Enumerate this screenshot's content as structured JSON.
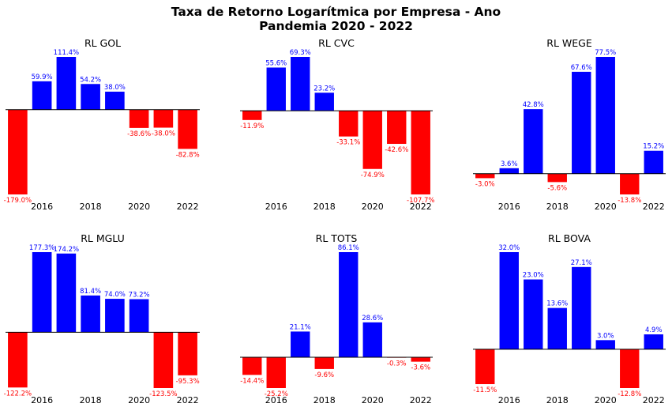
{
  "figure": {
    "title_line1": "Taxa de Retorno Logarítmica por Empresa - Ano",
    "title_line2": "Pandemia 2020 - 2022"
  },
  "colors": {
    "positive": "#0000ff",
    "negative": "#ff0000",
    "axis": "#000000"
  },
  "chart_data": [
    {
      "type": "bar",
      "title": "RL GOL",
      "categories": [
        2015,
        2016,
        2017,
        2018,
        2019,
        2020,
        2021,
        2022
      ],
      "tick_labels": [
        "2016",
        "2018",
        "2020",
        "2022"
      ],
      "values": [
        -179.0,
        59.9,
        111.4,
        54.2,
        38.0,
        -38.6,
        -38.0,
        -82.8
      ],
      "labels": [
        "-179.0%",
        "59.9%",
        "111.4%",
        "54.2%",
        "38.0%",
        "-38.6%",
        "-38.0%",
        "-82.8%"
      ]
    },
    {
      "type": "bar",
      "title": "RL CVC",
      "categories": [
        2015,
        2016,
        2017,
        2018,
        2019,
        2020,
        2021,
        2022
      ],
      "tick_labels": [
        "2016",
        "2018",
        "2020",
        "2022"
      ],
      "values": [
        -11.9,
        55.6,
        69.3,
        23.2,
        -33.1,
        -74.9,
        -42.6,
        -107.7
      ],
      "labels": [
        "-11.9%",
        "55.6%",
        "69.3%",
        "23.2%",
        "-33.1%",
        "-74.9%",
        "-42.6%",
        "-107.7%"
      ]
    },
    {
      "type": "bar",
      "title": "RL WEGE",
      "categories": [
        2015,
        2016,
        2017,
        2018,
        2019,
        2020,
        2021,
        2022
      ],
      "tick_labels": [
        "2016",
        "2018",
        "2020",
        "2022"
      ],
      "values": [
        -3.0,
        3.6,
        42.8,
        -5.6,
        67.6,
        77.5,
        -13.8,
        15.2
      ],
      "labels": [
        "-3.0%",
        "3.6%",
        "42.8%",
        "-5.6%",
        "67.6%",
        "77.5%",
        "-13.8%",
        "15.2%"
      ]
    },
    {
      "type": "bar",
      "title": "RL MGLU",
      "categories": [
        2015,
        2016,
        2017,
        2018,
        2019,
        2020,
        2021,
        2022
      ],
      "tick_labels": [
        "2016",
        "2018",
        "2020",
        "2022"
      ],
      "values": [
        -122.2,
        177.3,
        174.2,
        81.4,
        74.0,
        73.2,
        -123.5,
        -95.3
      ],
      "labels": [
        "-122.2%",
        "177.3%",
        "174.2%",
        "81.4%",
        "74.0%",
        "73.2%",
        "-123.5%",
        "-95.3%"
      ]
    },
    {
      "type": "bar",
      "title": "RL TOTS",
      "categories": [
        2015,
        2016,
        2017,
        2018,
        2019,
        2020,
        2021,
        2022
      ],
      "tick_labels": [
        "2016",
        "2018",
        "2020",
        "2022"
      ],
      "values": [
        -14.4,
        -25.2,
        21.1,
        -9.6,
        86.1,
        28.6,
        -0.3,
        -3.6
      ],
      "labels": [
        "-14.4%",
        "-25.2%",
        "21.1%",
        "-9.6%",
        "86.1%",
        "28.6%",
        "-0.3%",
        "-3.6%"
      ]
    },
    {
      "type": "bar",
      "title": "RL BOVA",
      "categories": [
        2015,
        2016,
        2017,
        2018,
        2019,
        2020,
        2021,
        2022
      ],
      "tick_labels": [
        "2016",
        "2018",
        "2020",
        "2022"
      ],
      "values": [
        -11.5,
        32.0,
        23.0,
        13.6,
        27.1,
        3.0,
        -12.8,
        4.9
      ],
      "labels": [
        "-11.5%",
        "32.0%",
        "23.0%",
        "13.6%",
        "27.1%",
        "3.0%",
        "-12.8%",
        "4.9%"
      ]
    }
  ]
}
